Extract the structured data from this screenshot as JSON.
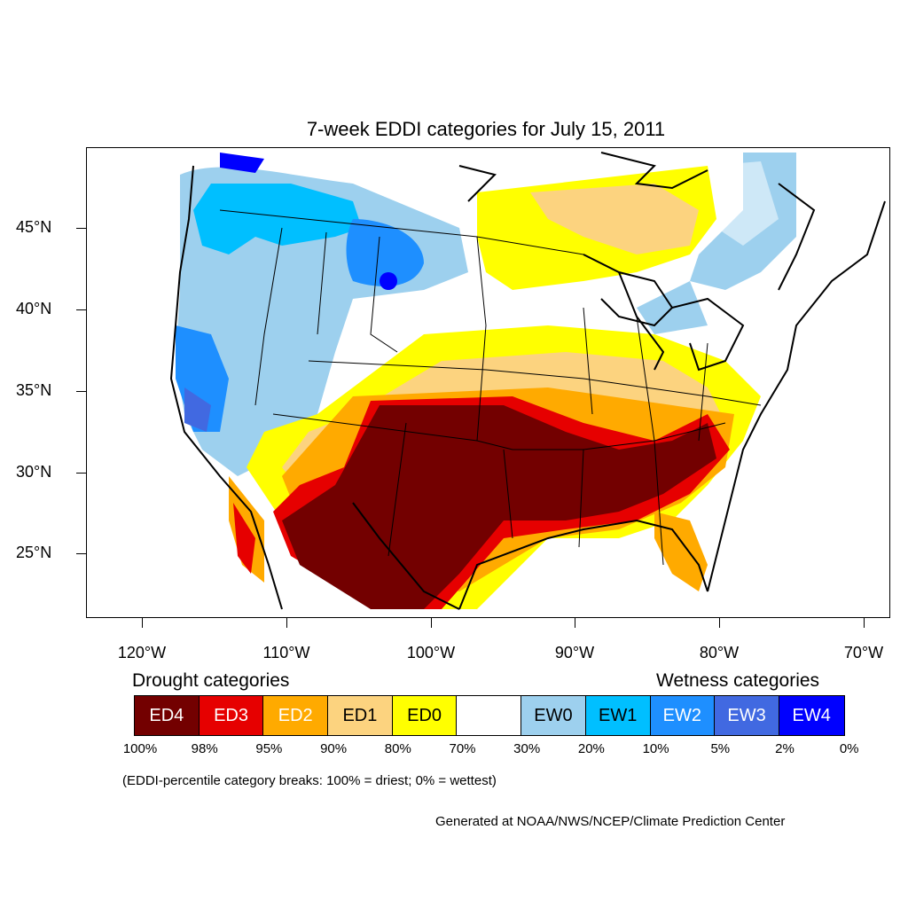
{
  "map": {
    "title": "7-week EDDI categories for July 15, 2011",
    "lat_labels": [
      "45°N",
      "40°N",
      "35°N",
      "30°N",
      "25°N"
    ],
    "lon_labels": [
      "120°W",
      "110°W",
      "100°W",
      "90°W",
      "80°W",
      "70°W"
    ]
  },
  "legend": {
    "drought_heading": "Drought categories",
    "wetness_heading": "Wetness categories",
    "categories": [
      {
        "label": "ED4",
        "color": "#730000"
      },
      {
        "label": "ED3",
        "color": "#e60000"
      },
      {
        "label": "ED2",
        "color": "#ffaa00"
      },
      {
        "label": "ED1",
        "color": "#fcd37f"
      },
      {
        "label": "ED0",
        "color": "#ffff00"
      },
      {
        "label": "",
        "color": "#ffffff"
      },
      {
        "label": "EW0",
        "color": "#9dd0ee"
      },
      {
        "label": "EW1",
        "color": "#00bfff"
      },
      {
        "label": "EW2",
        "color": "#1e8fff"
      },
      {
        "label": "EW3",
        "color": "#4169e1"
      },
      {
        "label": "EW4",
        "color": "#0000ff"
      }
    ],
    "breaks": [
      "100%",
      "98%",
      "95%",
      "90%",
      "80%",
      "70%",
      "30%",
      "20%",
      "10%",
      "5%",
      "2%",
      "0%"
    ],
    "note": "(EDDI-percentile category breaks: 100% = driest; 0% = wettest)"
  },
  "credit": "Generated at NOAA/NWS/NCEP/Climate Prediction Center"
}
